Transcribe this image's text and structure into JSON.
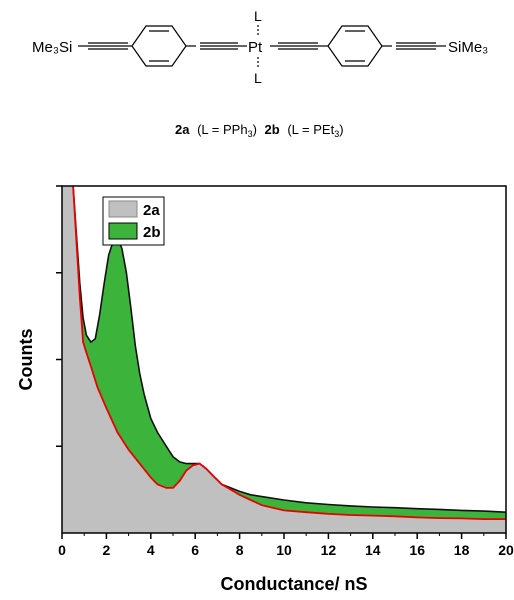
{
  "structure": {
    "left_group": "Me₃Si",
    "right_group": "SiMe₃",
    "metal": "Pt",
    "ligand_top": "L",
    "ligand_bottom": "L"
  },
  "compound_caption": {
    "a_num": "2a",
    "a_ligand": "(L = PPh",
    "a_sub": "3",
    "a_close": ")",
    "b_num": "2b",
    "b_ligand": "(L = PEt",
    "b_sub": "3",
    "b_close": ")"
  },
  "chart_data": {
    "type": "area",
    "xlabel": "Conductance/ nS",
    "ylabel": "Counts",
    "xlim": [
      0,
      20
    ],
    "ylim": [
      0,
      100
    ],
    "x_ticks": [
      "0",
      "2",
      "4",
      "6",
      "8",
      "10",
      "12",
      "14",
      "16",
      "18",
      "20"
    ],
    "y_tick_labels_shown": false,
    "legend": {
      "position": "top-left",
      "entries": [
        "2a",
        "2b"
      ]
    },
    "series": [
      {
        "name": "2a",
        "fill": "#c0c0c0",
        "outline": "#e60000",
        "x": [
          0.5,
          0.8,
          0.95,
          1.1,
          1.3,
          1.6,
          2.0,
          2.5,
          3.0,
          3.5,
          4.0,
          4.3,
          4.7,
          5.0,
          5.3,
          5.6,
          5.9,
          6.2,
          6.5,
          6.8,
          7.2,
          7.6,
          8.0,
          8.5,
          9.0,
          10.0,
          11.0,
          12.0,
          13.0,
          14.0,
          15.0,
          16.0,
          17.0,
          18.0,
          19.0,
          20.0
        ],
        "values": [
          100,
          68,
          55,
          52,
          48,
          42,
          36,
          29,
          24,
          20,
          16,
          14,
          13,
          13,
          15,
          18,
          19.5,
          20,
          18.5,
          16.5,
          14,
          12.5,
          11,
          9.5,
          8,
          6.5,
          6,
          5.5,
          5.2,
          5.0,
          4.8,
          4.5,
          4.3,
          4.2,
          4.0,
          4.0
        ]
      },
      {
        "name": "2b",
        "fill": "#3cb43c",
        "outline": "#111111",
        "x": [
          0.5,
          0.8,
          0.95,
          1.1,
          1.3,
          1.5,
          1.7,
          1.9,
          2.1,
          2.3,
          2.5,
          2.7,
          2.9,
          3.1,
          3.3,
          3.5,
          3.7,
          4.0,
          4.3,
          4.7,
          5.0,
          5.3,
          5.6,
          5.9,
          6.2,
          6.5,
          6.8,
          7.2,
          7.6,
          8.0,
          8.5,
          9.0,
          10.0,
          11.0,
          12.0,
          13.0,
          14.0,
          15.0,
          16.0,
          17.0,
          18.0,
          19.0,
          20.0
        ],
        "values": [
          100,
          72,
          62,
          57,
          55,
          56,
          63,
          72,
          80,
          84,
          85,
          82,
          75,
          65,
          54,
          46,
          40,
          33,
          29,
          25,
          22,
          20.5,
          20,
          20,
          20,
          18.5,
          16.5,
          14,
          13,
          12,
          11,
          10.5,
          9.5,
          8.7,
          8.2,
          7.8,
          7.5,
          7.3,
          7.0,
          6.8,
          6.5,
          6.3,
          6.0
        ]
      }
    ]
  }
}
